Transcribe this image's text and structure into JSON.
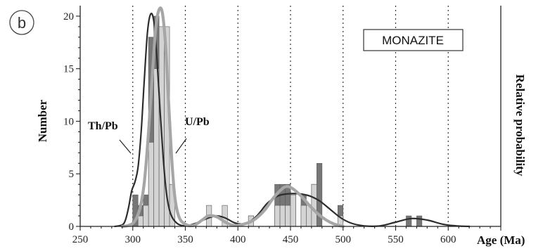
{
  "chart_data": {
    "type": "bar",
    "panel_label": "b",
    "box_label": "MONAZITE",
    "xlabel": "Age (Ma)",
    "ylabel": "Number",
    "y2label": "Relative probability",
    "xlim": [
      250,
      650
    ],
    "ylim": [
      0,
      21
    ],
    "x_ticks": [
      250,
      300,
      350,
      400,
      450,
      500,
      550,
      600
    ],
    "y_ticks": [
      0,
      5,
      10,
      15,
      20
    ],
    "grid": "vertical dotted",
    "bin_width": 5,
    "colors": {
      "th_pb_bar": "#777777",
      "u_pb_bar": "#d4d4d4",
      "th_pb_curve": "#2d2d2d",
      "u_pb_curve": "#a6a6a6"
    },
    "series": [
      {
        "name": "Th/Pb",
        "bins": [
          {
            "x": 300,
            "count": 3
          },
          {
            "x": 305,
            "count": 2
          },
          {
            "x": 310,
            "count": 3
          },
          {
            "x": 315,
            "count": 18
          },
          {
            "x": 320,
            "count": 20
          },
          {
            "x": 325,
            "count": 8
          },
          {
            "x": 330,
            "count": 4
          },
          {
            "x": 335,
            "count": 1
          },
          {
            "x": 410,
            "count": 1
          },
          {
            "x": 435,
            "count": 4
          },
          {
            "x": 440,
            "count": 4
          },
          {
            "x": 445,
            "count": 4
          },
          {
            "x": 450,
            "count": 3
          },
          {
            "x": 460,
            "count": 3
          },
          {
            "x": 470,
            "count": 4
          },
          {
            "x": 475,
            "count": 6
          },
          {
            "x": 495,
            "count": 2
          },
          {
            "x": 560,
            "count": 1
          },
          {
            "x": 570,
            "count": 1
          }
        ],
        "curve": [
          [
            283,
            0
          ],
          [
            290,
            0.15
          ],
          [
            293,
            0.6
          ],
          [
            296,
            1.8
          ],
          [
            299,
            3.4
          ],
          [
            302,
            4.2
          ],
          [
            305,
            5.6
          ],
          [
            308,
            9.0
          ],
          [
            311,
            14.0
          ],
          [
            314,
            18.5
          ],
          [
            317,
            20.2
          ],
          [
            320,
            19.5
          ],
          [
            323,
            16.0
          ],
          [
            326,
            11.0
          ],
          [
            329,
            6.5
          ],
          [
            332,
            3.2
          ],
          [
            336,
            1.2
          ],
          [
            342,
            0.3
          ],
          [
            350,
            0.05
          ],
          [
            360,
            0.3
          ],
          [
            372,
            0.8
          ],
          [
            380,
            1.0
          ],
          [
            388,
            0.8
          ],
          [
            398,
            0.3
          ],
          [
            408,
            0.3
          ],
          [
            418,
            1.0
          ],
          [
            428,
            2.2
          ],
          [
            438,
            2.9
          ],
          [
            448,
            3.1
          ],
          [
            458,
            3.1
          ],
          [
            468,
            2.9
          ],
          [
            478,
            2.4
          ],
          [
            488,
            1.6
          ],
          [
            498,
            0.8
          ],
          [
            508,
            0.3
          ],
          [
            520,
            0.05
          ],
          [
            535,
            0.05
          ],
          [
            550,
            0.4
          ],
          [
            565,
            0.75
          ],
          [
            580,
            0.6
          ],
          [
            595,
            0.2
          ],
          [
            608,
            0.05
          ],
          [
            620,
            0
          ]
        ]
      },
      {
        "name": "U/Pb",
        "bins": [
          {
            "x": 305,
            "count": 1
          },
          {
            "x": 310,
            "count": 2
          },
          {
            "x": 315,
            "count": 8
          },
          {
            "x": 320,
            "count": 15
          },
          {
            "x": 325,
            "count": 19
          },
          {
            "x": 330,
            "count": 19
          },
          {
            "x": 335,
            "count": 4
          },
          {
            "x": 370,
            "count": 2
          },
          {
            "x": 385,
            "count": 2
          },
          {
            "x": 410,
            "count": 1
          },
          {
            "x": 435,
            "count": 2
          },
          {
            "x": 440,
            "count": 2
          },
          {
            "x": 445,
            "count": 2
          },
          {
            "x": 450,
            "count": 3
          },
          {
            "x": 460,
            "count": 2
          },
          {
            "x": 465,
            "count": 2
          },
          {
            "x": 470,
            "count": 4
          },
          {
            "x": 495,
            "count": 1
          }
        ],
        "curve": [
          [
            290,
            0
          ],
          [
            296,
            0.1
          ],
          [
            302,
            0.5
          ],
          [
            307,
            1.8
          ],
          [
            311,
            4.2
          ],
          [
            315,
            9.0
          ],
          [
            319,
            15.0
          ],
          [
            322,
            19.0
          ],
          [
            325,
            20.6
          ],
          [
            328,
            20.4
          ],
          [
            331,
            17.5
          ],
          [
            334,
            12.0
          ],
          [
            337,
            6.5
          ],
          [
            340,
            2.8
          ],
          [
            344,
            0.9
          ],
          [
            350,
            0.2
          ],
          [
            358,
            0.1
          ],
          [
            366,
            0.6
          ],
          [
            372,
            1.0
          ],
          [
            380,
            0.9
          ],
          [
            388,
            0.4
          ],
          [
            396,
            0.1
          ],
          [
            405,
            0.2
          ],
          [
            415,
            0.6
          ],
          [
            425,
            1.5
          ],
          [
            433,
            2.6
          ],
          [
            440,
            3.4
          ],
          [
            446,
            3.8
          ],
          [
            452,
            3.6
          ],
          [
            460,
            2.9
          ],
          [
            468,
            2.0
          ],
          [
            476,
            1.2
          ],
          [
            484,
            0.6
          ],
          [
            492,
            0.2
          ],
          [
            500,
            0
          ]
        ]
      }
    ],
    "annotations": [
      {
        "text": "Th/Pb",
        "series": "Th/Pb"
      },
      {
        "text": "U/Pb",
        "series": "U/Pb"
      }
    ]
  }
}
